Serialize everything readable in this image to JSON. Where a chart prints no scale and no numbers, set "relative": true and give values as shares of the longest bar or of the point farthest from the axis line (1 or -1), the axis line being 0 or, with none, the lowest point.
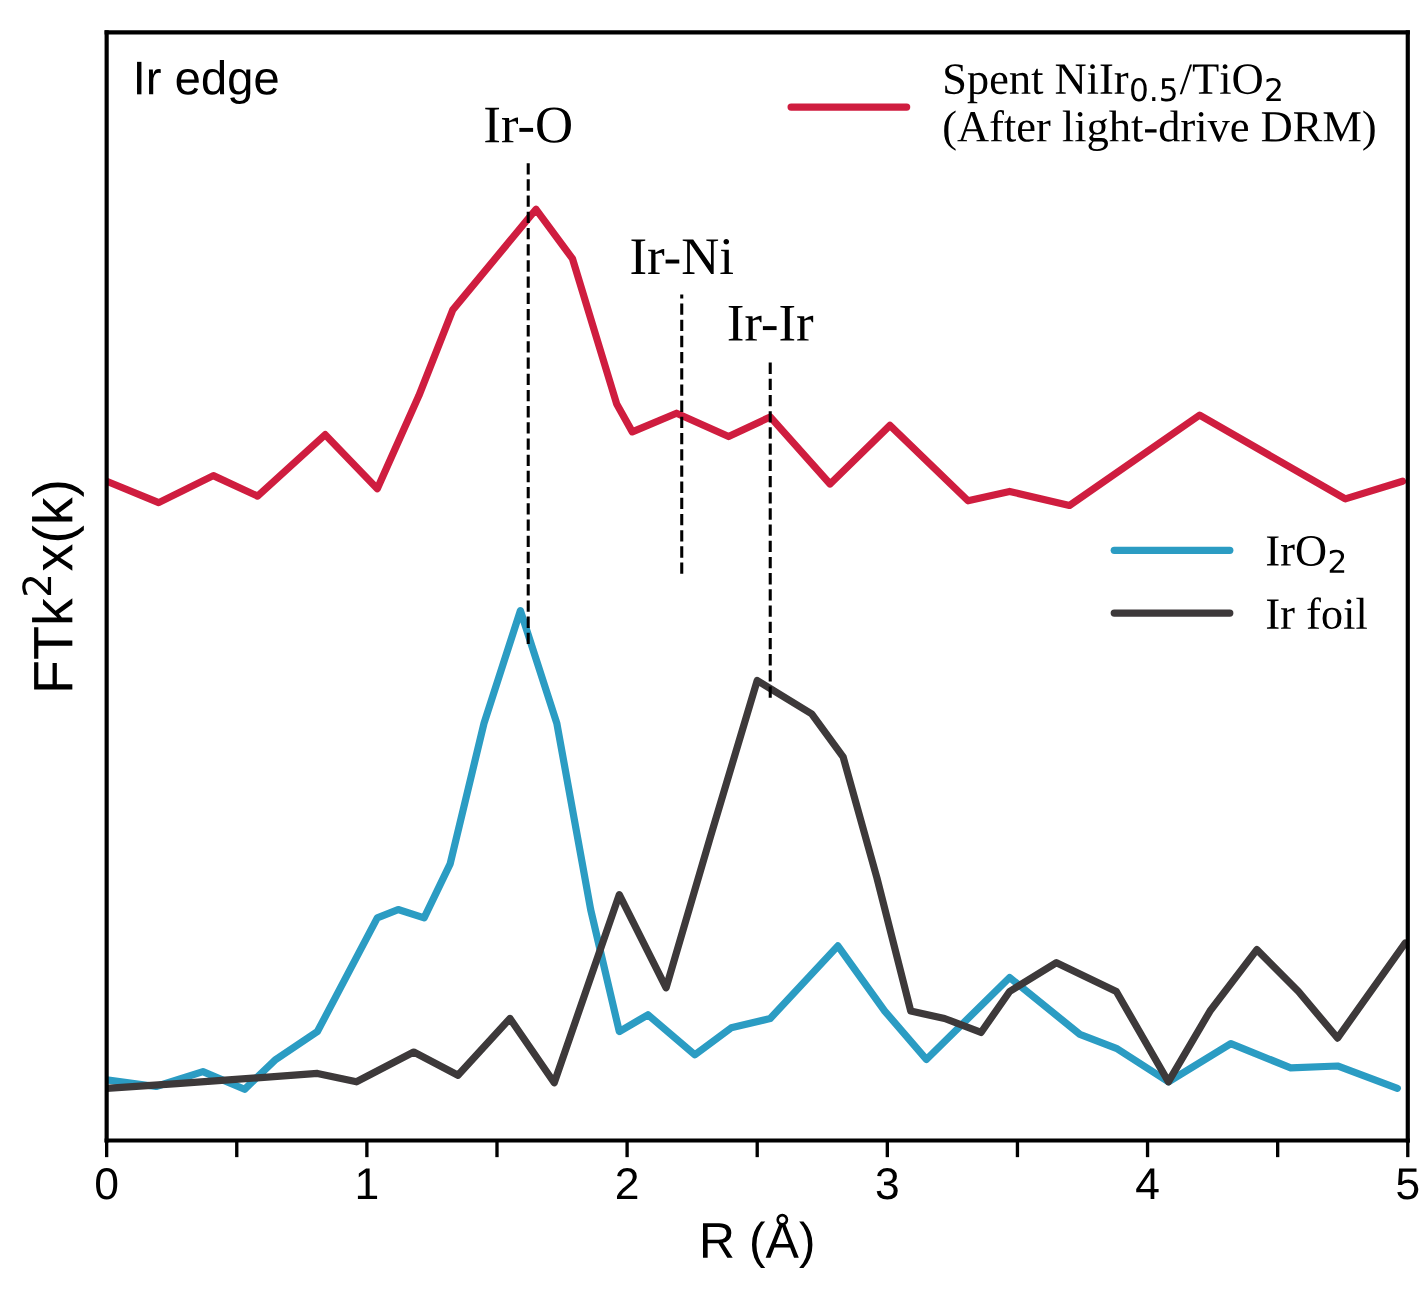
{
  "chart_data": {
    "type": "line",
    "relative": true,
    "title": "Ir edge",
    "xlabel": "R (Å)",
    "ylabel": "FTk$^{2}$x(k)",
    "xlim": [
      0,
      5
    ],
    "xticks": [
      0,
      {
        "value": 0.5,
        "label": null
      },
      1,
      {
        "value": 1.5,
        "label": null
      },
      2,
      {
        "value": 2.5,
        "label": null
      },
      3,
      {
        "value": 3.5,
        "label": null
      },
      4,
      {
        "value": 4.5,
        "label": null
      },
      5
    ],
    "grid": false,
    "legend": "top right",
    "marker": "none",
    "line_style": "solid",
    "ref_lines": [
      {
        "axis": "x",
        "value": 1.62,
        "label": "Ir-O",
        "line_style": "dashed",
        "color": "#000000"
      },
      {
        "axis": "x",
        "value": 2.21,
        "label": "Ir-Ni",
        "line_style": "dashed",
        "color": "#000000"
      },
      {
        "axis": "x",
        "value": 2.55,
        "label": "Ir-Ir",
        "line_style": "dashed",
        "color": "#000000"
      }
    ],
    "series": [
      {
        "name": "Spent NiIr$_{0.5}$/TiO$_{2}$\n(After light-drive DRM)",
        "color": "#cf1d3f",
        "x": [
          0,
          0.2,
          0.41,
          0.58,
          0.84,
          1.04,
          1.2,
          1.33,
          1.65,
          1.79,
          1.96,
          2.02,
          2.19,
          2.39,
          2.55,
          2.78,
          3.01,
          3.31,
          3.47,
          3.7,
          4.2,
          4.76,
          4.98
        ],
        "values": [
          0.708,
          0.685,
          0.714,
          0.692,
          0.758,
          0.7,
          0.8,
          0.892,
          1,
          0.947,
          0.791,
          0.761,
          0.781,
          0.756,
          0.777,
          0.705,
          0.768,
          0.687,
          0.697,
          0.682,
          0.779,
          0.689,
          0.708
        ]
      },
      {
        "name": "IrO$_{2}$",
        "color": "#2b9cc3",
        "x": [
          0,
          0.19,
          0.37,
          0.53,
          0.65,
          0.81,
          1.04,
          1.12,
          1.22,
          1.32,
          1.45,
          1.59,
          1.73,
          1.86,
          1.97,
          2.08,
          2.26,
          2.4,
          2.55,
          2.81,
          2.99,
          3.15,
          3.47,
          3.74,
          3.88,
          4.08,
          4.32,
          4.55,
          4.73,
          4.96
        ],
        "values": [
          0.065,
          0.058,
          0.074,
          0.055,
          0.087,
          0.117,
          0.239,
          0.248,
          0.239,
          0.297,
          0.448,
          0.569,
          0.448,
          0.248,
          0.117,
          0.135,
          0.092,
          0.121,
          0.131,
          0.209,
          0.139,
          0.087,
          0.175,
          0.114,
          0.099,
          0.063,
          0.104,
          0.078,
          0.08,
          0.056
        ]
      },
      {
        "name": "Ir foil",
        "color": "#3d393a",
        "x": [
          0,
          0.27,
          0.81,
          0.96,
          1.18,
          1.35,
          1.55,
          1.72,
          1.97,
          2.15,
          2.32,
          2.5,
          2.71,
          2.83,
          2.96,
          3.09,
          3.22,
          3.36,
          3.47,
          3.65,
          3.88,
          4.08,
          4.24,
          4.42,
          4.58,
          4.73,
          4.99
        ],
        "values": [
          0.056,
          0.061,
          0.072,
          0.063,
          0.095,
          0.07,
          0.131,
          0.062,
          0.264,
          0.164,
          0.326,
          0.494,
          0.458,
          0.412,
          0.282,
          0.139,
          0.131,
          0.116,
          0.16,
          0.191,
          0.16,
          0.063,
          0.139,
          0.205,
          0.16,
          0.11,
          0.212
        ]
      }
    ]
  }
}
